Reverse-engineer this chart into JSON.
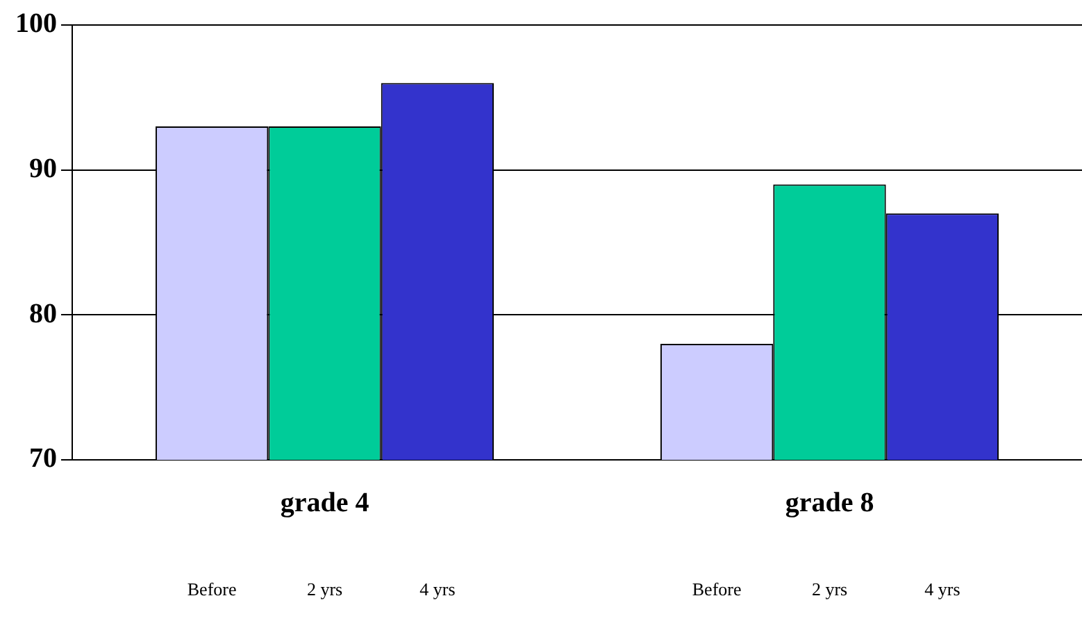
{
  "chart_data": {
    "type": "bar",
    "categories": [
      "grade 4",
      "grade 8"
    ],
    "series": [
      {
        "name": "Before",
        "color": "#ccccff",
        "values": [
          93,
          78
        ]
      },
      {
        "name": "2 yrs",
        "color": "#00cc99",
        "values": [
          93,
          89
        ]
      },
      {
        "name": "4 yrs",
        "color": "#3333cc",
        "values": [
          96,
          87
        ]
      }
    ],
    "ylim": [
      70,
      100
    ],
    "yticks": [
      70,
      80,
      90,
      100
    ],
    "grid": "y",
    "legend": false
  }
}
